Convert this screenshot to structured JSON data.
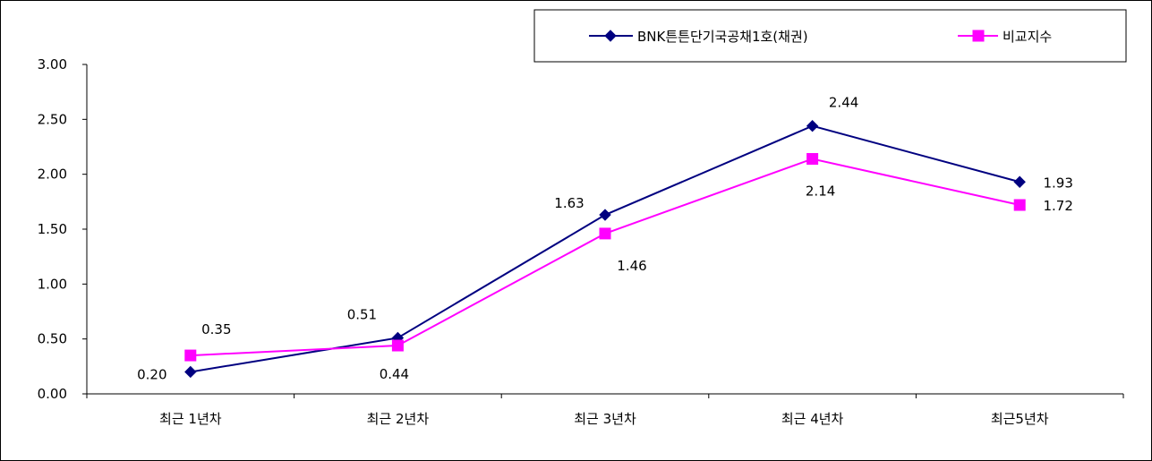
{
  "chart_data": {
    "type": "line",
    "categories": [
      "최근 1년차",
      "최근 2년차",
      "최근 3년차",
      "최근 4년차",
      "최근5년차"
    ],
    "series": [
      {
        "name": "BNK튼튼단기국공채1호(채권)",
        "values": [
          0.2,
          0.51,
          1.63,
          2.44,
          1.93
        ],
        "labels": [
          "0.20",
          "0.51",
          "1.63",
          "2.44",
          "1.93"
        ],
        "color": "#000080",
        "marker": "diamond"
      },
      {
        "name": "비교지수",
        "values": [
          0.35,
          0.44,
          1.46,
          2.14,
          1.72
        ],
        "labels": [
          "0.35",
          "0.44",
          "1.46",
          "2.14",
          "1.72"
        ],
        "color": "#FF00FF",
        "marker": "square"
      }
    ],
    "y_ticks": [
      "0.00",
      "0.50",
      "1.00",
      "1.50",
      "2.00",
      "2.50",
      "3.00"
    ],
    "ylim": [
      0,
      3
    ],
    "grid": false,
    "legend_position": "top-right"
  }
}
